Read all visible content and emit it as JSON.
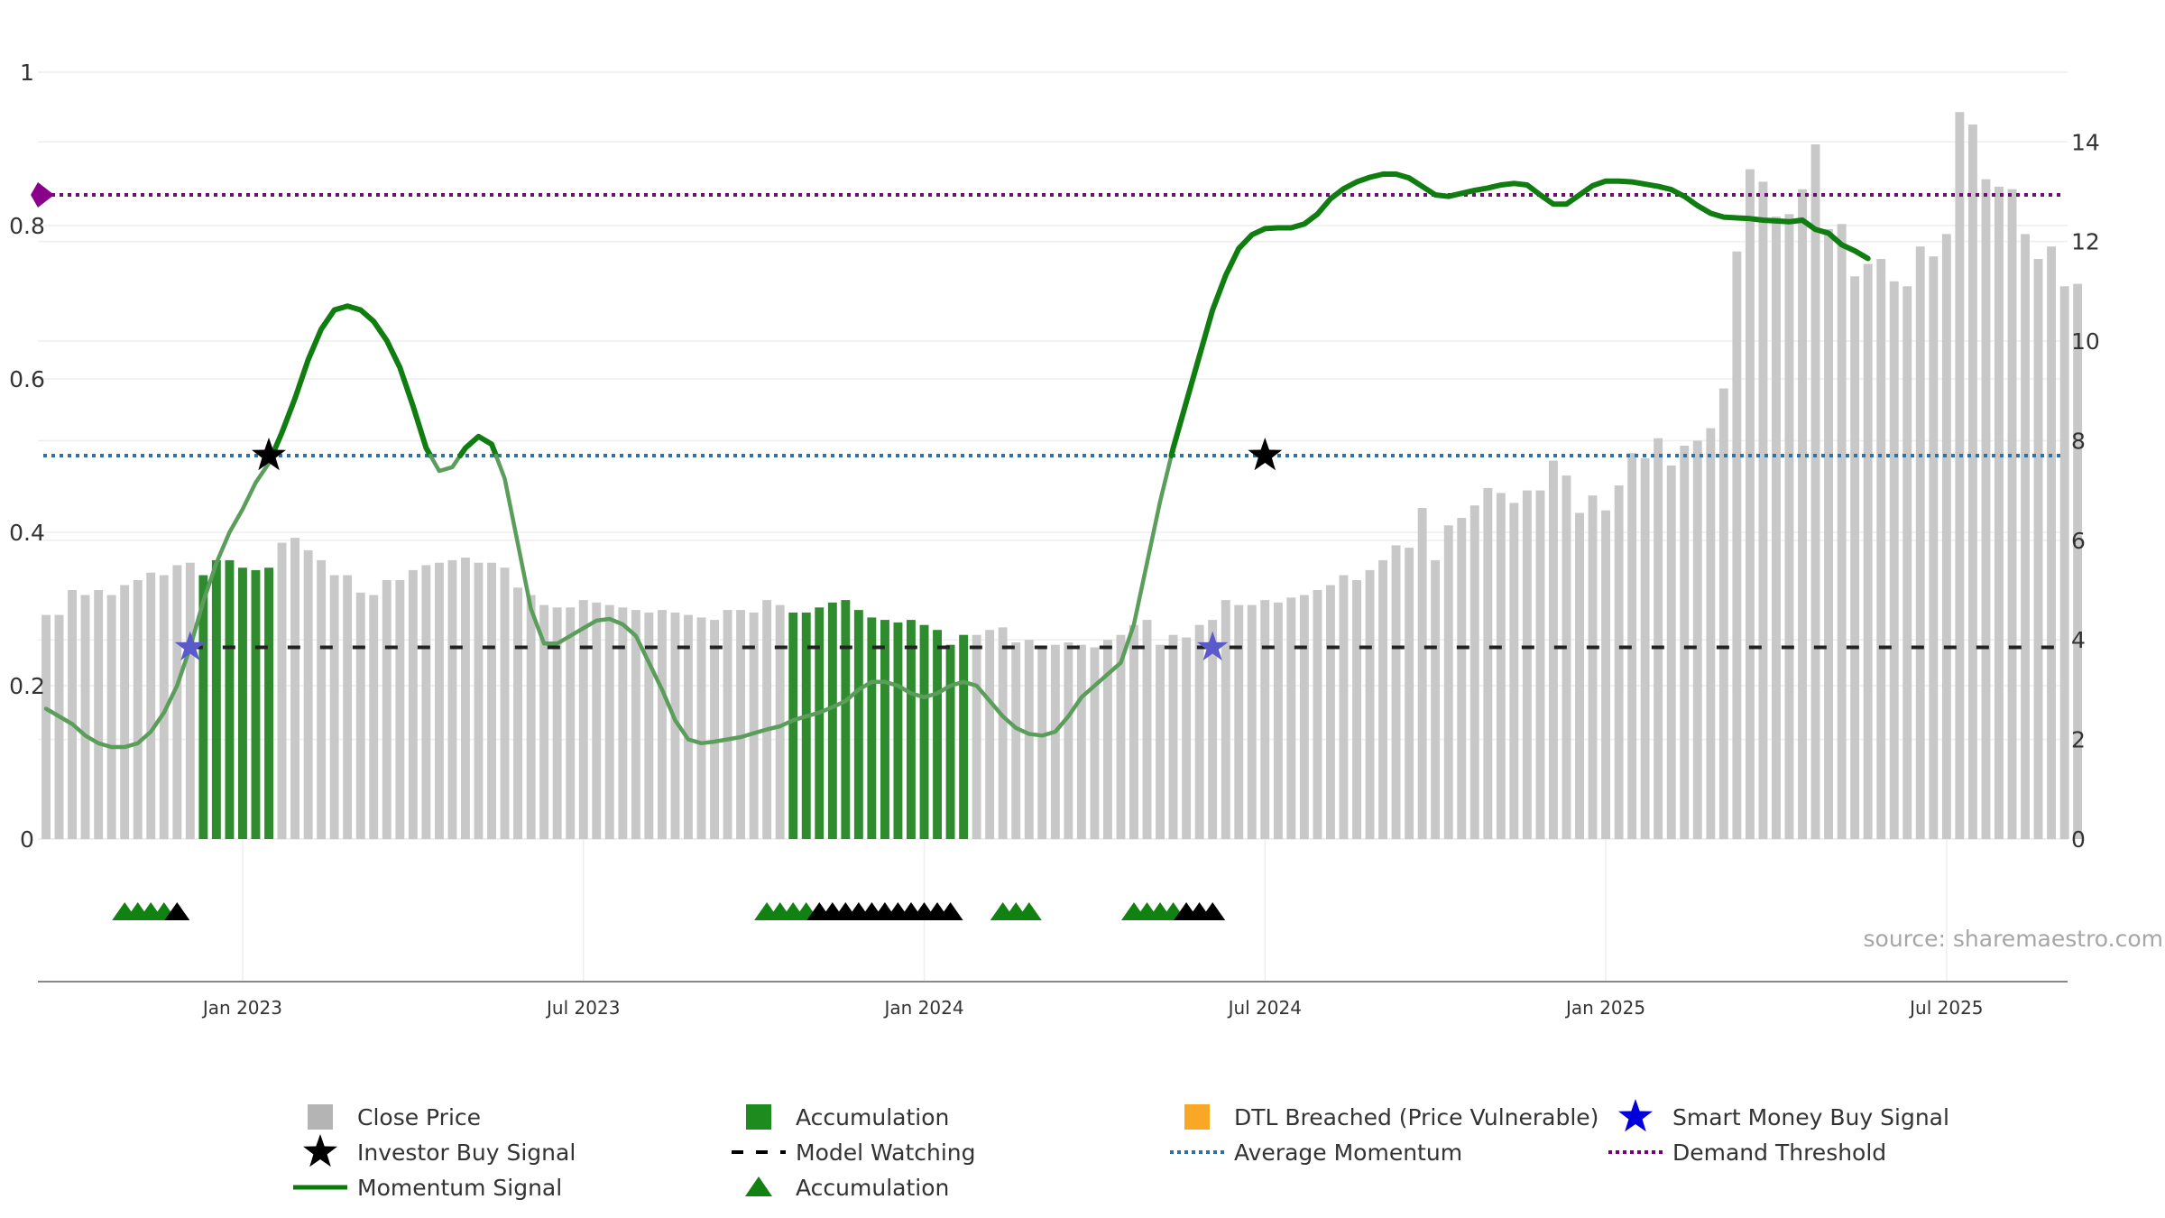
{
  "chart_data": {
    "type": "bar+line",
    "left_axis": {
      "ticks": [
        "0",
        "0.2",
        "0.4",
        "0.6",
        "0.8",
        "1"
      ],
      "ylim": [
        0,
        1
      ]
    },
    "right_axis": {
      "ticks": [
        "0",
        "2",
        "4",
        "6",
        "8",
        "10",
        "12",
        "14"
      ],
      "ylim": [
        0,
        15.4
      ]
    },
    "x_labels": [
      "Jan 2023",
      "Jul 2023",
      "Jan 2024",
      "Jul 2024",
      "Jan 2025",
      "Jul 2025"
    ],
    "x_range_weeks": [
      0,
      155
    ],
    "week_of_label": [
      15,
      41,
      67,
      93,
      119,
      145
    ],
    "close_price": [
      4.5,
      4.5,
      5,
      4.9,
      5,
      4.9,
      5.1,
      5.2,
      5.35,
      5.3,
      5.5,
      5.55,
      5.3,
      5.6,
      5.6,
      5.45,
      5.4,
      5.45,
      5.95,
      6.05,
      5.8,
      5.6,
      5.3,
      5.3,
      4.95,
      4.9,
      5.2,
      5.2,
      5.4,
      5.5,
      5.55,
      5.6,
      5.65,
      5.55,
      5.55,
      5.45,
      5.05,
      4.9,
      4.7,
      4.65,
      4.65,
      4.8,
      4.75,
      4.7,
      4.65,
      4.6,
      4.55,
      4.6,
      4.55,
      4.5,
      4.45,
      4.4,
      4.6,
      4.6,
      4.55,
      4.8,
      4.7,
      4.55,
      4.55,
      4.65,
      4.75,
      4.8,
      4.6,
      4.45,
      4.4,
      4.35,
      4.4,
      4.3,
      4.2,
      3.9,
      4.1,
      4.1,
      4.2,
      4.25,
      3.95,
      4,
      3.85,
      3.9,
      3.95,
      3.9,
      3.85,
      4,
      4.1,
      4.3,
      4.4,
      3.9,
      4.1,
      4.05,
      4.3,
      4.4,
      4.8,
      4.7,
      4.7,
      4.8,
      4.75,
      4.85,
      4.9,
      5,
      5.1,
      5.3,
      5.2,
      5.4,
      5.6,
      5.9,
      5.85,
      6.65,
      5.6,
      6.3,
      6.45,
      6.7,
      7.05,
      6.95,
      6.75,
      7,
      7,
      7.6,
      7.3,
      6.55,
      6.9,
      6.6,
      7.1,
      7.75,
      7.65,
      8.05,
      7.5,
      7.9,
      8,
      8.25,
      9.05,
      11.8,
      13.45,
      13.2,
      12.5,
      12.55,
      13.05,
      13.95,
      12.25,
      12.35,
      11.3,
      11.55,
      11.65,
      11.2,
      11.1,
      11.9,
      11.7,
      12.15,
      14.6,
      14.35,
      13.25,
      13.1,
      13.05,
      12.15,
      11.65,
      11.9,
      11.1,
      11.15
    ],
    "bar_status": "GGGGGGGGGGGGAAAAAAGGGGGGGGGGGGGGGGGGGGGGGGGGGGGGGGGGGGGGGAAAAAAAAAAAAAAGGGGGGGGGGGGGGGGGGGGGGGGGGGGGGGGGGGGGGGGGGGGGGGGGGGGGGGGGGGGGGGGGGGGGGGGGGGGGGGGGGGGGGGGGGGGGGGGGGGGGGGGGGGGGGGGGGGG",
    "momentum_signal": [
      [
        0,
        0.17
      ],
      [
        1,
        0.16
      ],
      [
        2,
        0.15
      ],
      [
        3,
        0.135
      ],
      [
        4,
        0.125
      ],
      [
        5,
        0.12
      ],
      [
        6,
        0.12
      ],
      [
        7,
        0.125
      ],
      [
        8,
        0.14
      ],
      [
        9,
        0.165
      ],
      [
        10,
        0.2
      ],
      [
        11,
        0.25
      ],
      [
        12,
        0.31
      ],
      [
        13,
        0.36
      ],
      [
        14,
        0.4
      ],
      [
        15,
        0.43
      ],
      [
        16,
        0.465
      ],
      [
        17,
        0.49
      ],
      [
        18,
        0.53
      ],
      [
        19,
        0.575
      ],
      [
        20,
        0.625
      ],
      [
        21,
        0.665
      ],
      [
        22,
        0.69
      ],
      [
        23,
        0.695
      ],
      [
        24,
        0.69
      ],
      [
        25,
        0.675
      ],
      [
        26,
        0.65
      ],
      [
        27,
        0.615
      ],
      [
        28,
        0.565
      ],
      [
        29,
        0.51
      ],
      [
        30,
        0.48
      ],
      [
        31,
        0.485
      ],
      [
        32,
        0.51
      ],
      [
        33,
        0.525
      ],
      [
        34,
        0.515
      ],
      [
        35,
        0.47
      ],
      [
        36,
        0.385
      ],
      [
        37,
        0.3
      ],
      [
        38,
        0.255
      ],
      [
        39,
        0.255
      ],
      [
        40,
        0.265
      ],
      [
        41,
        0.275
      ],
      [
        42,
        0.285
      ],
      [
        43,
        0.287
      ],
      [
        44,
        0.28
      ],
      [
        45,
        0.265
      ],
      [
        46,
        0.23
      ],
      [
        47,
        0.195
      ],
      [
        48,
        0.155
      ],
      [
        49,
        0.13
      ],
      [
        50,
        0.125
      ],
      [
        51,
        0.127
      ],
      [
        52,
        0.13
      ],
      [
        53,
        0.133
      ],
      [
        54,
        0.138
      ],
      [
        55,
        0.143
      ],
      [
        56,
        0.147
      ],
      [
        57,
        0.155
      ],
      [
        58,
        0.16
      ],
      [
        59,
        0.165
      ],
      [
        60,
        0.172
      ],
      [
        61,
        0.18
      ],
      [
        62,
        0.195
      ],
      [
        63,
        0.205
      ],
      [
        64,
        0.205
      ],
      [
        65,
        0.2
      ],
      [
        66,
        0.19
      ],
      [
        67,
        0.185
      ],
      [
        68,
        0.19
      ],
      [
        69,
        0.2
      ],
      [
        70,
        0.205
      ],
      [
        71,
        0.2
      ],
      [
        72,
        0.18
      ],
      [
        73,
        0.16
      ],
      [
        74,
        0.145
      ],
      [
        75,
        0.137
      ],
      [
        76,
        0.135
      ],
      [
        77,
        0.14
      ],
      [
        78,
        0.16
      ],
      [
        79,
        0.185
      ],
      [
        80,
        0.2
      ],
      [
        81,
        0.215
      ],
      [
        82,
        0.23
      ],
      [
        83,
        0.28
      ],
      [
        84,
        0.36
      ],
      [
        85,
        0.44
      ],
      [
        86,
        0.51
      ],
      [
        87,
        0.57
      ],
      [
        88,
        0.63
      ],
      [
        89,
        0.69
      ],
      [
        90,
        0.735
      ],
      [
        91,
        0.77
      ],
      [
        92,
        0.788
      ],
      [
        93,
        0.796
      ],
      [
        94,
        0.797
      ],
      [
        95,
        0.797
      ],
      [
        96,
        0.802
      ],
      [
        97,
        0.815
      ],
      [
        98,
        0.835
      ],
      [
        99,
        0.848
      ],
      [
        100,
        0.857
      ],
      [
        101,
        0.863
      ],
      [
        102,
        0.867
      ],
      [
        103,
        0.867
      ],
      [
        104,
        0.862
      ],
      [
        105,
        0.851
      ],
      [
        106,
        0.84
      ],
      [
        107,
        0.838
      ],
      [
        108,
        0.842
      ],
      [
        109,
        0.846
      ],
      [
        110,
        0.849
      ],
      [
        111,
        0.853
      ],
      [
        112,
        0.855
      ],
      [
        113,
        0.853
      ],
      [
        114,
        0.84
      ],
      [
        115,
        0.828
      ],
      [
        116,
        0.828
      ],
      [
        117,
        0.84
      ],
      [
        118,
        0.852
      ],
      [
        119,
        0.858
      ],
      [
        120,
        0.858
      ],
      [
        121,
        0.857
      ],
      [
        122,
        0.854
      ],
      [
        123,
        0.851
      ],
      [
        124,
        0.847
      ],
      [
        125,
        0.838
      ],
      [
        126,
        0.826
      ],
      [
        127,
        0.816
      ],
      [
        128,
        0.811
      ],
      [
        129,
        0.81
      ],
      [
        130,
        0.809
      ],
      [
        131,
        0.807
      ],
      [
        132,
        0.806
      ],
      [
        133,
        0.805
      ],
      [
        134,
        0.807
      ],
      [
        135,
        0.795
      ],
      [
        136,
        0.79
      ],
      [
        137,
        0.775
      ],
      [
        138,
        0.767
      ],
      [
        139,
        0.757
      ]
    ],
    "model_watching": {
      "value": 0.25,
      "range_weeks": [
        11,
        154
      ]
    },
    "average_momentum": 0.5,
    "demand_threshold": 0.84,
    "investor_buy_signals": [
      [
        17,
        0.5
      ],
      [
        93,
        0.5
      ]
    ],
    "smart_money_buy_signals": [
      [
        11,
        0.25
      ],
      [
        89,
        0.25
      ]
    ],
    "accumulation_markers": [
      {
        "week": 6,
        "kind": "accumulation"
      },
      {
        "week": 7,
        "kind": "accumulation"
      },
      {
        "week": 8,
        "kind": "accumulation"
      },
      {
        "week": 9,
        "kind": "accumulation"
      },
      {
        "week": 10,
        "kind": "watching"
      },
      {
        "week": 55,
        "kind": "accumulation"
      },
      {
        "week": 56,
        "kind": "accumulation"
      },
      {
        "week": 57,
        "kind": "accumulation"
      },
      {
        "week": 58,
        "kind": "accumulation"
      },
      {
        "week": 59,
        "kind": "watching"
      },
      {
        "week": 60,
        "kind": "watching"
      },
      {
        "week": 61,
        "kind": "watching"
      },
      {
        "week": 62,
        "kind": "watching"
      },
      {
        "week": 63,
        "kind": "watching"
      },
      {
        "week": 64,
        "kind": "watching"
      },
      {
        "week": 65,
        "kind": "watching"
      },
      {
        "week": 66,
        "kind": "watching"
      },
      {
        "week": 67,
        "kind": "watching"
      },
      {
        "week": 68,
        "kind": "watching"
      },
      {
        "week": 69,
        "kind": "watching"
      },
      {
        "week": 73,
        "kind": "accumulation"
      },
      {
        "week": 74,
        "kind": "accumulation"
      },
      {
        "week": 75,
        "kind": "accumulation"
      },
      {
        "week": 83,
        "kind": "accumulation"
      },
      {
        "week": 84,
        "kind": "accumulation"
      },
      {
        "week": 85,
        "kind": "accumulation"
      },
      {
        "week": 86,
        "kind": "accumulation"
      },
      {
        "week": 87,
        "kind": "watching"
      },
      {
        "week": 88,
        "kind": "watching"
      },
      {
        "week": 89,
        "kind": "watching"
      }
    ],
    "source": "source: sharemaestro.com",
    "legend": [
      {
        "label": "Close Price",
        "symbol": "gray-square"
      },
      {
        "label": "Accumulation",
        "symbol": "green-square"
      },
      {
        "label": "DTL Breached (Price Vulnerable)",
        "symbol": "orange-square"
      },
      {
        "label": "Smart Money Buy Signal",
        "symbol": "blue-star"
      },
      {
        "label": "Investor Buy Signal",
        "symbol": "black-star"
      },
      {
        "label": "Model Watching",
        "symbol": "black-dash"
      },
      {
        "label": "Average Momentum",
        "symbol": "blue-dotted"
      },
      {
        "label": "Demand Threshold",
        "symbol": "purple-dotted"
      },
      {
        "label": "Momentum Signal",
        "symbol": "green-line"
      },
      {
        "label": "Accumulation",
        "symbol": "green-triangle"
      }
    ],
    "colors": {
      "close": "#c8c8c8",
      "accumulation": "#2e8b2e",
      "dtl": "#fdcb77",
      "momentum": "#107d10",
      "momentum_faded": "#5b9e5b",
      "model_watching": "#222222",
      "average_momentum": "#2f72a8",
      "demand_threshold": "#6b106b",
      "smart_money": "#5a5acb",
      "investor": "#000000",
      "grid": "#eeeeee"
    }
  }
}
